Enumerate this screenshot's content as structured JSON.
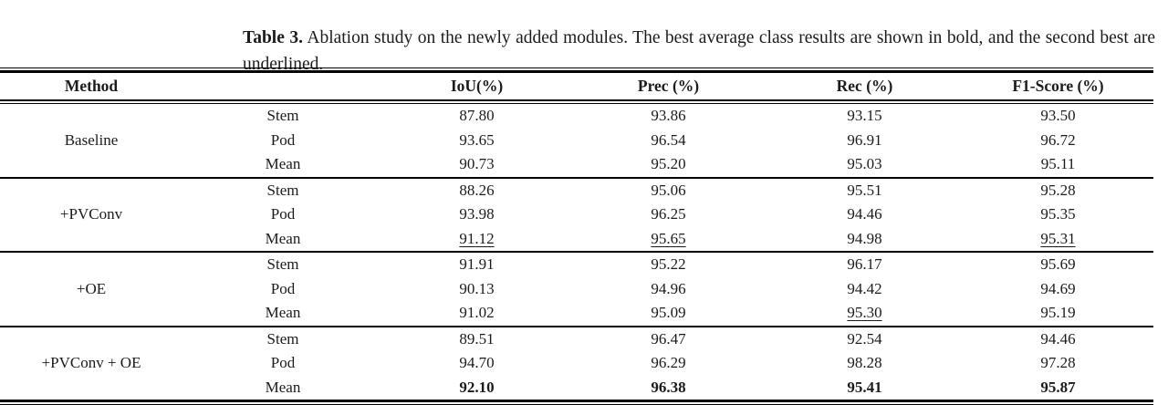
{
  "caption": {
    "label": "Table 3.",
    "text": "Ablation study on the newly added modules. The best average class results are shown in bold, and the second best are underlined."
  },
  "table": {
    "headers": [
      "Method",
      "",
      "IoU(%)",
      "Prec (%)",
      "Rec (%)",
      "F1-Score (%)"
    ],
    "groups": [
      {
        "method": "Baseline",
        "rows": [
          {
            "class": "Stem",
            "iou": "87.80",
            "prec": "93.86",
            "rec": "93.15",
            "f1": "93.50"
          },
          {
            "class": "Pod",
            "iou": "93.65",
            "prec": "96.54",
            "rec": "96.91",
            "f1": "96.72"
          },
          {
            "class": "Mean",
            "iou": "90.73",
            "prec": "95.20",
            "rec": "95.03",
            "f1": "95.11"
          }
        ]
      },
      {
        "method": "+PVConv",
        "rows": [
          {
            "class": "Stem",
            "iou": "88.26",
            "prec": "95.06",
            "rec": "95.51",
            "f1": "95.28"
          },
          {
            "class": "Pod",
            "iou": "93.98",
            "prec": "96.25",
            "rec": "94.46",
            "f1": "95.35"
          },
          {
            "class": "Mean",
            "iou": {
              "v": "91.12",
              "em": "underline"
            },
            "prec": {
              "v": "95.65",
              "em": "underline"
            },
            "rec": "94.98",
            "f1": {
              "v": "95.31",
              "em": "underline"
            }
          }
        ]
      },
      {
        "method": "+OE",
        "rows": [
          {
            "class": "Stem",
            "iou": "91.91",
            "prec": "95.22",
            "rec": "96.17",
            "f1": "95.69"
          },
          {
            "class": "Pod",
            "iou": "90.13",
            "prec": "94.96",
            "rec": "94.42",
            "f1": "94.69"
          },
          {
            "class": "Mean",
            "iou": "91.02",
            "prec": "95.09",
            "rec": {
              "v": "95.30",
              "em": "underline"
            },
            "f1": "95.19"
          }
        ]
      },
      {
        "method": "+PVConv + OE",
        "rows": [
          {
            "class": "Stem",
            "iou": "89.51",
            "prec": "96.47",
            "rec": "92.54",
            "f1": "94.46"
          },
          {
            "class": "Pod",
            "iou": "94.70",
            "prec": "96.29",
            "rec": "98.28",
            "f1": "97.28"
          },
          {
            "class": "Mean",
            "iou": {
              "v": "92.10",
              "em": "bold"
            },
            "prec": {
              "v": "96.38",
              "em": "bold"
            },
            "rec": {
              "v": "95.41",
              "em": "bold"
            },
            "f1": {
              "v": "95.87",
              "em": "bold"
            }
          }
        ]
      }
    ]
  }
}
